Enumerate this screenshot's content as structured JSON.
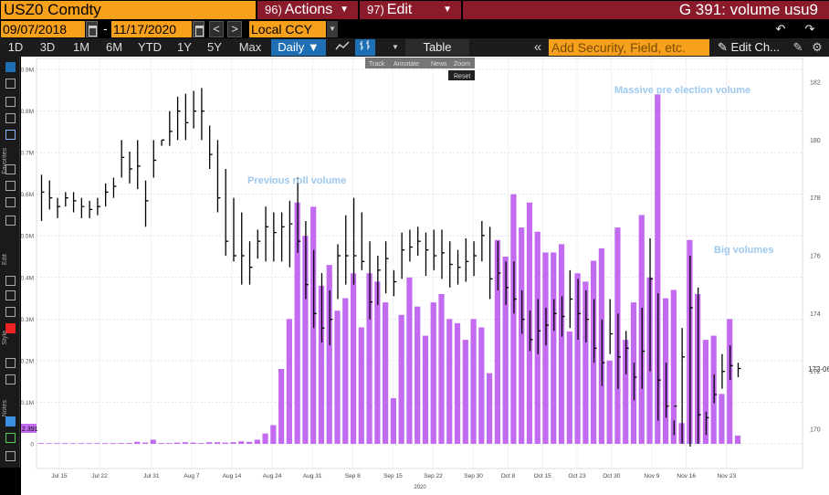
{
  "header": {
    "ticker": "USZ0 Comdty",
    "actions": {
      "num": "96)",
      "label": "Actions"
    },
    "edit": {
      "num": "97)",
      "label": "Edit"
    },
    "function_title": "G 391: volume usu9"
  },
  "date_range": {
    "start": "09/07/2018",
    "separator": "-",
    "end": "11/17/2020",
    "prev": "<",
    "next": ">"
  },
  "currency": "Local CCY",
  "periods": [
    "1D",
    "3D",
    "1M",
    "6M",
    "YTD",
    "1Y",
    "5Y",
    "Max"
  ],
  "frequency": "Daily",
  "table_button": "Table",
  "add_security_placeholder": "Add Security, Field, etc.",
  "edit_chart_label": "Edit Ch...",
  "chart_toolbar": {
    "track": "Track",
    "annotate": "Annotate",
    "news": "News",
    "zoom": "Zoom",
    "reset": "Reset"
  },
  "sidebar_labels": {
    "favorites": "Favorites",
    "edit": "Edit",
    "style": "Style",
    "notes": "Notes"
  },
  "annotations": {
    "previous_roll": "Previous roll volume",
    "massive_pre_election": "Massive pre election volume",
    "big_volumes": "Big volumes"
  },
  "last_volume_tag": "2.391",
  "last_price_tag": "172-06",
  "colors": {
    "volume": "#c36bf0",
    "price": "#000000",
    "header_orange": "#f7a01c",
    "header_red": "#8b1a2b",
    "annotation": "#9ec8ee"
  },
  "chart_data": {
    "type": "bar",
    "x_start_label": "Jul 15",
    "x_ticks": [
      "Jul 15",
      "Jul 22",
      "Jul 31",
      "Aug 7",
      "Aug 14",
      "Aug 24",
      "Aug 31",
      "Sep 8",
      "Sep 15",
      "Sep 22",
      "Sep 30",
      "Oct 8",
      "Oct 15",
      "Oct 23",
      "Oct 30",
      "Nov 9",
      "Nov 16",
      "Nov 23"
    ],
    "x_year_label": "2020",
    "left_axis": {
      "label": "Volume",
      "range": [
        0,
        0.9
      ],
      "ticks": [
        "0",
        "0.1M",
        "0.2M",
        "0.3M",
        "0.4M",
        "0.5M",
        "0.6M",
        "0.7M",
        "0.8M",
        "0.9M"
      ]
    },
    "right_axis": {
      "label": "Price",
      "range": [
        169.5,
        182.5
      ],
      "ticks": [
        "170",
        "172",
        "174",
        "176",
        "178",
        "180",
        "182"
      ]
    },
    "series": [
      {
        "name": "Volume",
        "type": "bar",
        "values": [
          0,
          0,
          0,
          0,
          0,
          0,
          0,
          0,
          0,
          0,
          0.002,
          0.002,
          0.005,
          0.003,
          0.01,
          0.002,
          0.002,
          0.003,
          0.004,
          0.003,
          0.002,
          0.004,
          0.004,
          0.003,
          0.004,
          0.006,
          0.005,
          0.01,
          0.025,
          0.045,
          0.18,
          0.3,
          0.58,
          0.5,
          0.57,
          0.38,
          0.43,
          0.32,
          0.35,
          0.41,
          0.28,
          0.41,
          0.39,
          0.34,
          0.11,
          0.31,
          0.4,
          0.33,
          0.26,
          0.34,
          0.36,
          0.3,
          0.29,
          0.25,
          0.3,
          0.28,
          0.17,
          0.49,
          0.45,
          0.6,
          0.52,
          0.58,
          0.51,
          0.46,
          0.46,
          0.48,
          0.27,
          0.41,
          0.39,
          0.44,
          0.47,
          0.2,
          0.52,
          0.25,
          0.34,
          0.55,
          0.4,
          0.84,
          0.35,
          0.37,
          0.05,
          0.49,
          0.36,
          0.25,
          0.26,
          0.12,
          0.3,
          0.02
        ],
        "positions": [
          0,
          1,
          2,
          3,
          4,
          5,
          6,
          7,
          8,
          9,
          10,
          11,
          12,
          13,
          14,
          15,
          16,
          17,
          18,
          19,
          20,
          21,
          22,
          23,
          24,
          25,
          26,
          27,
          28,
          29,
          30,
          31,
          32,
          33,
          34,
          35,
          36,
          37,
          38,
          39,
          40,
          41,
          42,
          43,
          44,
          45,
          46,
          47,
          48,
          49,
          50,
          51,
          52,
          53,
          54,
          55,
          56,
          57,
          58,
          59,
          60,
          61,
          62,
          63,
          64,
          65,
          66,
          67,
          68,
          69,
          70,
          71,
          72,
          73,
          74,
          75,
          76,
          77,
          78,
          79,
          80,
          81,
          82,
          83,
          84,
          85,
          86,
          87
        ]
      },
      {
        "name": "Price",
        "type": "hlc",
        "high": [
          178.8,
          178.6,
          178.0,
          178.2,
          178.2,
          178.0,
          177.9,
          178.0,
          178.5,
          178.7,
          180.0,
          179.6,
          180.0,
          178.6,
          180.0,
          180.0,
          181.0,
          181.5,
          181.6,
          181.7,
          181.8,
          180.5,
          180.0,
          179.0,
          178.0,
          177.5,
          176.5,
          176.9,
          177.7,
          177.5,
          177.5,
          177.9,
          178.7,
          177.2,
          176.2,
          175.4,
          174.8,
          176.4,
          177.4,
          178.0,
          177.5,
          176.5,
          176.0,
          176.5,
          175.5,
          176.8,
          176.9,
          177.0,
          176.8,
          176.9,
          176.9,
          176.5,
          176.2,
          176.6,
          176.5,
          177.2,
          177.0,
          176.5,
          175.8,
          175.8,
          174.8,
          174.1,
          174.5,
          174.2,
          174.5,
          174.6,
          175.5,
          175.2,
          174.8,
          174.5,
          173.8,
          174.5,
          174.0,
          173.4,
          172.3,
          174.2,
          176.6,
          174.7,
          172.3,
          170.3,
          173.5,
          176.0,
          174.9,
          170.6,
          171.9,
          172.6,
          172.9,
          172.3
        ],
        "low": [
          177.2,
          177.6,
          177.3,
          177.7,
          177.5,
          177.3,
          177.3,
          177.4,
          177.7,
          178.0,
          178.7,
          178.5,
          178.3,
          177.0,
          178.7,
          179.8,
          179.8,
          180.0,
          180.0,
          180.4,
          180.0,
          179.0,
          177.5,
          176.0,
          175.8,
          175.0,
          175.0,
          175.9,
          175.8,
          175.8,
          175.8,
          175.6,
          176.1,
          174.5,
          173.5,
          173.0,
          172.9,
          174.5,
          175.0,
          175.0,
          175.5,
          173.8,
          174.3,
          174.7,
          174.6,
          175.2,
          175.8,
          176.0,
          175.3,
          175.5,
          175.2,
          174.9,
          175.0,
          175.1,
          175.3,
          175.8,
          174.5,
          174.8,
          174.3,
          174.0,
          173.3,
          172.7,
          172.6,
          172.9,
          173.4,
          173.2,
          173.5,
          173.1,
          173.0,
          172.3,
          171.5,
          172.6,
          171.4,
          171.9,
          171.0,
          171.4,
          172.0,
          170.3,
          170.4,
          169.8,
          169.5,
          169.4,
          169.5,
          169.8,
          170.9,
          171.4,
          171.7,
          171.8
        ],
        "close": [
          178.2,
          178.0,
          177.7,
          178.0,
          177.9,
          177.7,
          177.6,
          177.7,
          178.2,
          178.4,
          179.4,
          179.0,
          179.1,
          177.9,
          179.3,
          180.0,
          180.3,
          181.0,
          180.6,
          181.0,
          181.0,
          179.5,
          178.0,
          176.5,
          176.0,
          176.0,
          175.6,
          176.5,
          177.0,
          176.8,
          177.0,
          177.1,
          176.5,
          175.0,
          174.0,
          173.5,
          173.8,
          176.0,
          176.0,
          176.0,
          175.8,
          174.4,
          175.5,
          175.9,
          175.1,
          176.2,
          176.3,
          176.5,
          176.2,
          176.0,
          176.1,
          175.7,
          175.6,
          175.8,
          176.0,
          176.7,
          175.2,
          175.4,
          174.9,
          174.5,
          173.8,
          173.1,
          173.4,
          173.6,
          174.0,
          173.9,
          174.5,
          174.0,
          173.8,
          172.8,
          172.3,
          173.3,
          172.5,
          172.8,
          171.8,
          172.7,
          175.2,
          171.7,
          170.8,
          170.8,
          172.5,
          174.2,
          170.5,
          170.4,
          171.2,
          172.0,
          172.2,
          172.1
        ]
      }
    ],
    "grid": true,
    "legend": "none"
  }
}
